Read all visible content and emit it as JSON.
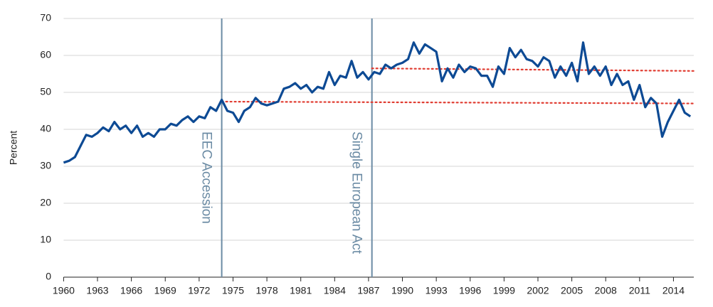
{
  "chart_data": {
    "type": "line",
    "y_label": "Percent",
    "xlim": [
      1960,
      2015.8
    ],
    "ylim": [
      0,
      70
    ],
    "xticks": [
      1960,
      1963,
      1966,
      1969,
      1972,
      1975,
      1978,
      1981,
      1984,
      1987,
      1990,
      1993,
      1996,
      1999,
      2002,
      2005,
      2008,
      2011,
      2014
    ],
    "yticks": [
      0,
      10,
      20,
      30,
      40,
      50,
      60,
      70
    ],
    "grid": true,
    "x": [
      1960,
      1960.5,
      1961,
      1961.5,
      1962,
      1962.5,
      1963,
      1963.5,
      1964,
      1964.5,
      1965,
      1965.5,
      1966,
      1966.5,
      1967,
      1967.5,
      1968,
      1968.5,
      1969,
      1969.5,
      1970,
      1970.5,
      1971,
      1971.5,
      1972,
      1972.5,
      1973,
      1973.5,
      1974,
      1974.5,
      1975,
      1975.5,
      1976,
      1976.5,
      1977,
      1977.5,
      1978,
      1978.5,
      1979,
      1979.5,
      1980,
      1980.5,
      1981,
      1981.5,
      1982,
      1982.5,
      1983,
      1983.5,
      1984,
      1984.5,
      1985,
      1985.5,
      1986,
      1986.5,
      1987,
      1987.5,
      1988,
      1988.5,
      1989,
      1989.5,
      1990,
      1990.5,
      1991,
      1991.5,
      1992,
      1992.5,
      1993,
      1993.5,
      1994,
      1994.5,
      1995,
      1995.5,
      1996,
      1996.5,
      1997,
      1997.5,
      1998,
      1998.5,
      1999,
      1999.5,
      2000,
      2000.5,
      2001,
      2001.5,
      2002,
      2002.5,
      2003,
      2003.5,
      2004,
      2004.5,
      2005,
      2005.5,
      2006,
      2006.5,
      2007,
      2007.5,
      2008,
      2008.5,
      2009,
      2009.5,
      2010,
      2010.5,
      2011,
      2011.5,
      2012,
      2012.5,
      2013,
      2013.5,
      2014,
      2014.5,
      2015,
      2015.5
    ],
    "series": [
      {
        "color": "#0d4a94",
        "values": [
          31,
          31.5,
          32.5,
          35.5,
          38.5,
          38,
          39,
          40.5,
          39.5,
          42,
          40,
          41,
          39,
          41,
          38,
          39,
          38,
          40,
          40,
          41.5,
          41,
          42.5,
          43.5,
          42,
          43.5,
          43,
          46,
          45,
          48,
          45,
          44.5,
          42,
          45,
          46,
          48.5,
          47,
          46.5,
          47,
          47.5,
          51,
          51.5,
          52.5,
          51,
          52,
          50,
          51.5,
          51,
          55.5,
          52,
          54.5,
          54,
          58.5,
          54,
          55.5,
          53.5,
          55.5,
          55,
          57.5,
          56.5,
          57.5,
          58,
          59,
          63.5,
          60.5,
          63,
          62,
          61,
          53,
          56.5,
          54,
          57.5,
          55.5,
          57,
          56.5,
          54.5,
          54.5,
          51.5,
          57,
          55,
          62,
          59.5,
          61.5,
          59,
          58.5,
          57,
          59.5,
          58.5,
          54,
          57,
          54.5,
          58,
          53,
          63.5,
          55,
          57,
          54.5,
          57,
          52,
          55,
          52,
          53,
          48,
          52,
          46,
          48.5,
          47,
          38,
          42,
          45,
          48,
          44.5,
          43.5
        ]
      }
    ],
    "reference_lines": [
      {
        "color": "#e03c31",
        "x": [
          1974,
          2015.8
        ],
        "values": [
          47.5,
          47
        ]
      },
      {
        "color": "#e03c31",
        "x": [
          1987.3,
          2015.8
        ],
        "values": [
          56.5,
          55.8
        ]
      }
    ],
    "events": [
      {
        "x": 1974,
        "label": "EEC Accession",
        "color": "#6b8ba4"
      },
      {
        "x": 1987.3,
        "label": "Single European Act",
        "color": "#6b8ba4"
      }
    ]
  }
}
